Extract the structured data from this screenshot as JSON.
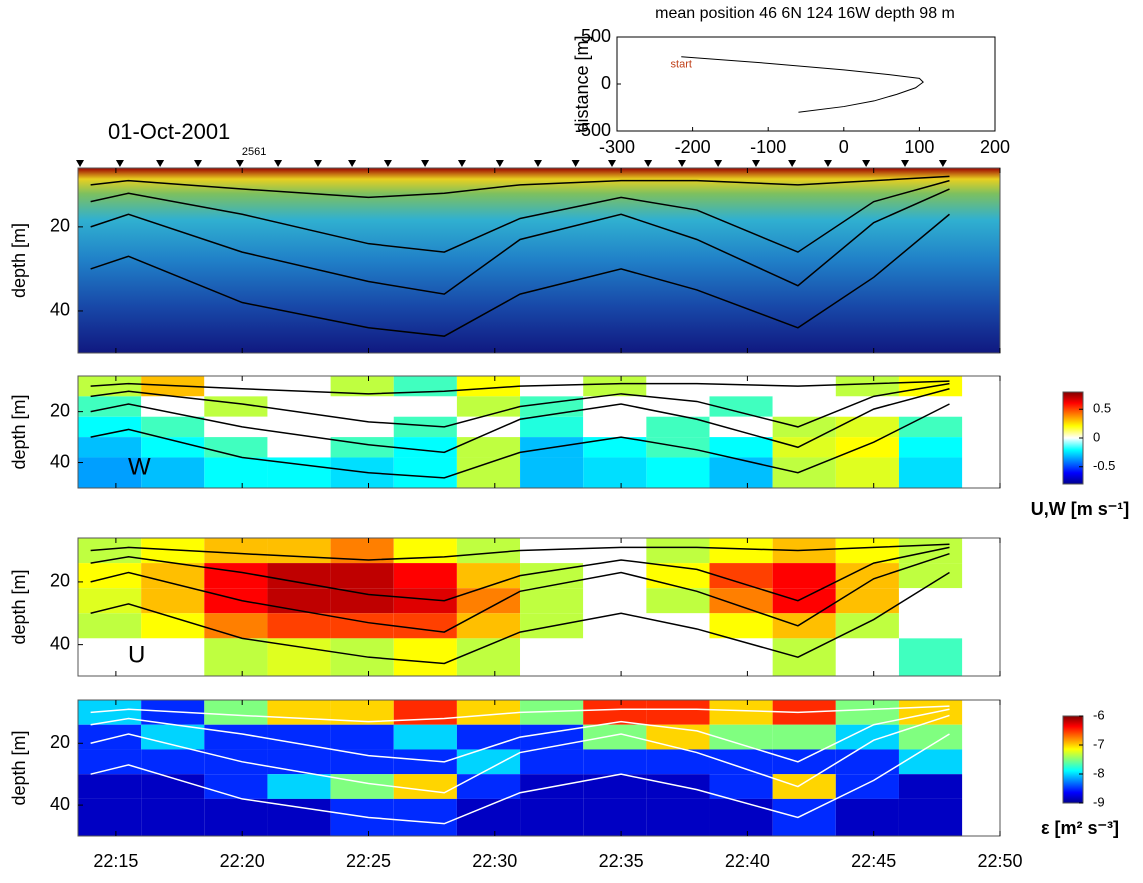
{
  "chart_data": [
    {
      "type": "line",
      "title": "mean position 46 6N 124 16W    depth 98 m",
      "ylabel": "distance [m]",
      "annotation": "start",
      "xlim": [
        -300,
        200
      ],
      "xticks": [
        -300,
        -200,
        -100,
        0,
        100,
        200
      ],
      "ylim": [
        -500,
        500
      ],
      "yticks": [
        -500,
        0,
        500
      ],
      "x": [
        -215,
        -100,
        0,
        60,
        100,
        105,
        95,
        70,
        40,
        0,
        -60
      ],
      "values": [
        290,
        220,
        150,
        100,
        60,
        20,
        -40,
        -110,
        -180,
        -240,
        -300
      ],
      "color": "#000000",
      "annotation_color": "#c0401a"
    },
    {
      "type": "backscatter",
      "title": "01-Oct-2001",
      "ylabel": "depth [m]",
      "ylim": [
        6,
        50
      ],
      "yticks": [
        20,
        40
      ],
      "xlim": [
        13.5,
        50
      ],
      "profile_times": [
        13.58,
        15.16,
        16.75,
        18.25,
        19.91,
        21.42,
        23.0,
        24.35,
        25.77,
        27.24,
        28.7,
        30.2,
        31.71,
        33.2,
        34.64,
        36.07,
        37.41,
        38.84,
        40.34,
        41.77,
        43.19,
        44.7,
        46.24,
        47.74
      ],
      "profile_labels": [
        null,
        null,
        null,
        null,
        "2561",
        null,
        null,
        null,
        null,
        null,
        null,
        null,
        null,
        null,
        null,
        null,
        null,
        null,
        null,
        null,
        null,
        null,
        null,
        null
      ]
    },
    {
      "type": "heatmap",
      "label": "W",
      "ylabel": "depth [m]",
      "ylim": [
        6,
        50
      ],
      "yticks": [
        20,
        40
      ],
      "xlim": [
        13.5,
        50
      ],
      "x_edges": [
        13.5,
        16,
        18.5,
        21,
        23.5,
        26,
        28.5,
        31,
        33.5,
        36,
        38.5,
        41,
        43.5,
        46,
        48.5
      ],
      "y_edges": [
        6,
        14,
        22,
        30,
        38,
        50
      ],
      "values": [
        [
          0.1,
          0.3,
          0.05,
          0,
          0.1,
          -0.1,
          0.2,
          0,
          0.1,
          0.05,
          0,
          -0.05,
          0.1,
          0.2
        ],
        [
          -0.1,
          0,
          0.1,
          0.05,
          -0.05,
          0,
          0.1,
          -0.1,
          0,
          0.05,
          -0.1,
          0,
          0.05,
          0
        ],
        [
          -0.2,
          -0.1,
          0,
          0.05,
          0,
          -0.1,
          0,
          -0.15,
          0.05,
          -0.1,
          -0.05,
          0.1,
          0.15,
          -0.1
        ],
        [
          -0.3,
          -0.2,
          -0.1,
          0,
          -0.1,
          -0.2,
          0.1,
          -0.3,
          -0.2,
          -0.1,
          -0.2,
          0.15,
          0.2,
          -0.2
        ],
        [
          -0.35,
          -0.3,
          -0.2,
          -0.2,
          -0.25,
          -0.2,
          0.1,
          -0.3,
          -0.25,
          -0.2,
          -0.3,
          0.1,
          0.15,
          -0.25
        ]
      ],
      "colorbar": {
        "label": "U,W [m s⁻¹]",
        "lim": [
          -0.8,
          0.8
        ],
        "ticks": [
          -0.5,
          0,
          0.5
        ]
      }
    },
    {
      "type": "heatmap",
      "label": "U",
      "ylabel": "depth [m]",
      "ylim": [
        6,
        50
      ],
      "yticks": [
        20,
        40
      ],
      "xlim": [
        13.5,
        50
      ],
      "x_edges": [
        13.5,
        16,
        18.5,
        21,
        23.5,
        26,
        28.5,
        31,
        33.5,
        36,
        38.5,
        41,
        43.5,
        46,
        48.5
      ],
      "y_edges": [
        6,
        14,
        22,
        30,
        38,
        50
      ],
      "values": [
        [
          0.1,
          0.2,
          0.3,
          0.3,
          0.4,
          0.2,
          0.1,
          0,
          0,
          0.1,
          0.2,
          0.3,
          0.2,
          0.1
        ],
        [
          0.2,
          0.3,
          0.6,
          0.7,
          0.7,
          0.6,
          0.3,
          0.1,
          0.05,
          0.2,
          0.5,
          0.6,
          0.3,
          0.1
        ],
        [
          0.15,
          0.3,
          0.6,
          0.7,
          0.7,
          0.65,
          0.4,
          0.1,
          0.05,
          0.1,
          0.4,
          0.6,
          0.3,
          0
        ],
        [
          0.1,
          0.2,
          0.4,
          0.5,
          0.5,
          0.5,
          0.3,
          0.1,
          0,
          0.05,
          0.2,
          0.3,
          0.1,
          -0.05
        ],
        [
          0,
          0.05,
          0.1,
          0.15,
          0.1,
          0.2,
          0.1,
          0,
          -0.05,
          0,
          0.05,
          0.1,
          0,
          -0.1
        ]
      ]
    },
    {
      "type": "heatmap",
      "ylabel": "depth [m]",
      "ylim": [
        6,
        50
      ],
      "yticks": [
        20,
        40
      ],
      "xlim": [
        13.5,
        50
      ],
      "xticks": [
        {
          "value": 15,
          "label": "22:15"
        },
        {
          "value": 20,
          "label": "22:20"
        },
        {
          "value": 25,
          "label": "22:25"
        },
        {
          "value": 30,
          "label": "22:30"
        },
        {
          "value": 35,
          "label": "22:35"
        },
        {
          "value": 40,
          "label": "22:40"
        },
        {
          "value": 45,
          "label": "22:45"
        },
        {
          "value": 50,
          "label": "22:50"
        }
      ],
      "x_edges": [
        13.5,
        16,
        18.5,
        21,
        23.5,
        26,
        28.5,
        31,
        33.5,
        36,
        38.5,
        41,
        43.5,
        46,
        48.5
      ],
      "y_edges": [
        6,
        14,
        22,
        30,
        38,
        50
      ],
      "values": [
        [
          -8,
          -8.5,
          -7.5,
          -7,
          -7,
          -6.5,
          -7,
          -7.5,
          -6.5,
          -6.5,
          -7,
          -6.5,
          -7.5,
          -7
        ],
        [
          -8.5,
          -8,
          -8.5,
          -8.5,
          -8.5,
          -8,
          -8.5,
          -8.5,
          -7.5,
          -7,
          -7.5,
          -7.5,
          -8,
          -7.5
        ],
        [
          -8.5,
          -8.5,
          -8.5,
          -8.5,
          -8.5,
          -8.5,
          -8,
          -8.5,
          -8.5,
          -8.5,
          -8.5,
          -8.5,
          -8.5,
          -8
        ],
        [
          -8.8,
          -8.8,
          -8.5,
          -8,
          -7.5,
          -7,
          -8.5,
          -8.8,
          -8.8,
          -8.8,
          -8.5,
          -7,
          -8.5,
          -8.8
        ],
        [
          -8.8,
          -8.8,
          -8.8,
          -8.8,
          -8.5,
          -8.5,
          -8.8,
          -8.8,
          -8.8,
          -8.8,
          -8.8,
          -8.5,
          -8.8,
          -8.8
        ]
      ],
      "colorbar": {
        "label": "ε [m² s⁻³]",
        "lim": [
          -9,
          -6
        ],
        "ticks": [
          -9,
          -8,
          -7,
          -6
        ]
      }
    }
  ],
  "isopycnals": {
    "x": [
      14,
      15.5,
      20,
      25,
      28,
      31,
      35,
      38,
      42,
      45,
      48
    ],
    "series": [
      {
        "values": [
          10,
          9,
          11,
          13,
          12,
          10,
          9,
          9,
          10,
          9,
          8
        ]
      },
      {
        "values": [
          14,
          12,
          17,
          24,
          26,
          18,
          13,
          16,
          26,
          14,
          9
        ]
      },
      {
        "values": [
          20,
          17,
          26,
          33,
          36,
          23,
          17,
          23,
          34,
          19,
          11
        ]
      },
      {
        "values": [
          30,
          27,
          38,
          44,
          46,
          36,
          30,
          35,
          44,
          32,
          17
        ]
      }
    ]
  }
}
